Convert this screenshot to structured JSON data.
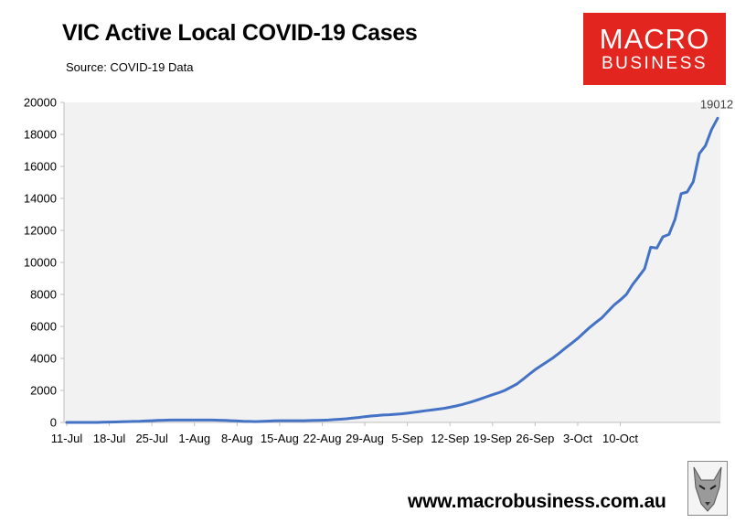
{
  "header": {
    "title": "VIC Active Local COVID-19 Cases",
    "source": "Source: COVID-19 Data"
  },
  "logo": {
    "line1": "MACRO",
    "line2": "BUSINESS",
    "color": "#e2261f"
  },
  "footer": {
    "url": "www.macrobusiness.com.au"
  },
  "colors": {
    "line": "#4472c4",
    "plot_bg": "#f2f2f2",
    "axis": "#bfbfbf"
  },
  "chart_data": {
    "type": "line",
    "title": "VIC Active Local COVID-19 Cases",
    "subtitle": "Source: COVID-19 Data",
    "xlabel": "",
    "ylabel": "",
    "ylim": [
      0,
      20000
    ],
    "yticks": [
      0,
      2000,
      4000,
      6000,
      8000,
      10000,
      12000,
      14000,
      16000,
      18000,
      20000
    ],
    "xtick_labels": [
      "11-Jul",
      "18-Jul",
      "25-Jul",
      "1-Aug",
      "8-Aug",
      "15-Aug",
      "22-Aug",
      "29-Aug",
      "5-Sep",
      "12-Sep",
      "19-Sep",
      "26-Sep",
      "3-Oct",
      "10-Oct"
    ],
    "grid": false,
    "legend": "none",
    "last_value_label": "19012",
    "series": [
      {
        "values": [
          0,
          0,
          0,
          0,
          0,
          0,
          10,
          20,
          30,
          40,
          50,
          60,
          70,
          90,
          110,
          130,
          140,
          150,
          150,
          150,
          150,
          150,
          150,
          150,
          150,
          140,
          130,
          110,
          90,
          70,
          60,
          50,
          60,
          80,
          100,
          110,
          110,
          110,
          110,
          110,
          120,
          130,
          140,
          150,
          180,
          200,
          230,
          270,
          310,
          360,
          400,
          430,
          460,
          480,
          510,
          540,
          580,
          630,
          680,
          730,
          780,
          830,
          880,
          950,
          1030,
          1120,
          1220,
          1340,
          1470,
          1600,
          1730,
          1850,
          2000,
          2200,
          2400,
          2700,
          3000,
          3300,
          3550,
          3800,
          4050,
          4350,
          4650,
          4950,
          5250,
          5600,
          5950,
          6250,
          6550,
          6950,
          7350,
          7650,
          8000,
          8600,
          9100,
          9600,
          10950,
          10900,
          11600,
          11750,
          12700,
          14300,
          14400,
          15050,
          16800,
          17300,
          18300,
          19012
        ]
      }
    ]
  }
}
